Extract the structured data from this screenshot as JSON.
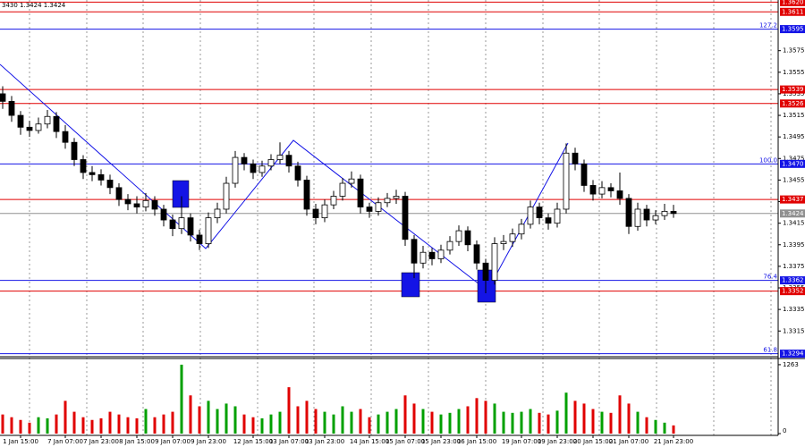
{
  "chart_data": {
    "type": "candlestick",
    "ohlc_text": "3430 1.3424 1.3424",
    "categories": [
      null,
      null,
      "1 Jan 15:00",
      null,
      null,
      null,
      null,
      "7 Jan 07:00",
      null,
      null,
      null,
      "7 Jan 23:00",
      null,
      null,
      null,
      "8 Jan 15:00",
      null,
      null,
      null,
      "9 Jan 07:00",
      null,
      null,
      null,
      "9 Jan 23:00",
      null,
      null,
      null,
      null,
      "12 Jan 15:00",
      null,
      null,
      null,
      "13 Jan 07:00",
      null,
      null,
      null,
      "13 Jan 23:00",
      null,
      null,
      null,
      null,
      "14 Jan 15:00",
      null,
      null,
      null,
      "15 Jan 07:00",
      null,
      null,
      null,
      "15 Jan 23:00",
      null,
      null,
      null,
      "16 Jan 15:00",
      null,
      null,
      null,
      null,
      "19 Jan 07:00",
      null,
      null,
      null,
      "19 Jan 23:00",
      null,
      null,
      null,
      "20 Jan 15:00",
      null,
      null,
      null,
      "21 Jan 07:00",
      null,
      null,
      null,
      null,
      "21 Jan 23:00"
    ],
    "candles": [
      [
        1.3535,
        1.3542,
        1.3521,
        1.3528
      ],
      [
        1.3528,
        1.3533,
        1.3509,
        1.3515
      ],
      [
        1.3515,
        1.3519,
        1.3497,
        1.3504
      ],
      [
        1.3504,
        1.351,
        1.3495,
        1.3501
      ],
      [
        1.3501,
        1.3513,
        1.3498,
        1.3507
      ],
      [
        1.3507,
        1.352,
        1.3503,
        1.3514
      ],
      [
        1.3514,
        1.3518,
        1.3494,
        1.35
      ],
      [
        1.35,
        1.3506,
        1.3484,
        1.349
      ],
      [
        1.349,
        1.3494,
        1.3468,
        1.3474
      ],
      [
        1.3474,
        1.3478,
        1.3456,
        1.3462
      ],
      [
        1.3462,
        1.3468,
        1.3454,
        1.346
      ],
      [
        1.346,
        1.3465,
        1.345,
        1.3455
      ],
      [
        1.3455,
        1.346,
        1.3442,
        1.3448
      ],
      [
        1.3448,
        1.3452,
        1.3431,
        1.3437
      ],
      [
        1.3437,
        1.3442,
        1.3427,
        1.3433
      ],
      [
        1.3433,
        1.344,
        1.3424,
        1.343
      ],
      [
        1.343,
        1.3443,
        1.3426,
        1.3436
      ],
      [
        1.3436,
        1.344,
        1.3422,
        1.3428
      ],
      [
        1.3428,
        1.3432,
        1.3412,
        1.3418
      ],
      [
        1.3418,
        1.3423,
        1.3403,
        1.341
      ],
      [
        1.341,
        1.344,
        1.3405,
        1.342
      ],
      [
        1.342,
        1.3424,
        1.3398,
        1.3404
      ],
      [
        1.3404,
        1.3409,
        1.339,
        1.3396
      ],
      [
        1.3396,
        1.3425,
        1.3392,
        1.342
      ],
      [
        1.342,
        1.3434,
        1.3415,
        1.3428
      ],
      [
        1.3428,
        1.3458,
        1.3424,
        1.3452
      ],
      [
        1.3452,
        1.3482,
        1.3448,
        1.3476
      ],
      [
        1.3476,
        1.348,
        1.3464,
        1.347
      ],
      [
        1.347,
        1.3474,
        1.3456,
        1.3462
      ],
      [
        1.3462,
        1.3473,
        1.3458,
        1.3468
      ],
      [
        1.3468,
        1.3479,
        1.3464,
        1.3474
      ],
      [
        1.3474,
        1.349,
        1.347,
        1.3478
      ],
      [
        1.3478,
        1.3482,
        1.3462,
        1.3468
      ],
      [
        1.3468,
        1.3472,
        1.3449,
        1.3455
      ],
      [
        1.3455,
        1.3459,
        1.3422,
        1.3428
      ],
      [
        1.3428,
        1.3433,
        1.3414,
        1.342
      ],
      [
        1.342,
        1.3437,
        1.3416,
        1.3432
      ],
      [
        1.3432,
        1.3445,
        1.3428,
        1.344
      ],
      [
        1.344,
        1.3457,
        1.3436,
        1.3452
      ],
      [
        1.3452,
        1.3463,
        1.3448,
        1.3456
      ],
      [
        1.3456,
        1.346,
        1.3424,
        1.343
      ],
      [
        1.343,
        1.3434,
        1.342,
        1.3426
      ],
      [
        1.3426,
        1.3439,
        1.3422,
        1.3434
      ],
      [
        1.3434,
        1.3443,
        1.343,
        1.3438
      ],
      [
        1.3438,
        1.3446,
        1.3433,
        1.344
      ],
      [
        1.344,
        1.3444,
        1.3394,
        1.34
      ],
      [
        1.34,
        1.3404,
        1.3364,
        1.3378
      ],
      [
        1.3378,
        1.3394,
        1.3373,
        1.3388
      ],
      [
        1.3388,
        1.3392,
        1.3376,
        1.3382
      ],
      [
        1.3382,
        1.3395,
        1.3378,
        1.339
      ],
      [
        1.339,
        1.3403,
        1.3386,
        1.3398
      ],
      [
        1.3398,
        1.3413,
        1.3394,
        1.3408
      ],
      [
        1.3408,
        1.3412,
        1.3389,
        1.3395
      ],
      [
        1.3395,
        1.3399,
        1.3372,
        1.3378
      ],
      [
        1.3378,
        1.3382,
        1.335,
        1.3362
      ],
      [
        1.3362,
        1.3402,
        1.3358,
        1.3396
      ],
      [
        1.3396,
        1.3404,
        1.339,
        1.3398
      ],
      [
        1.3398,
        1.341,
        1.3393,
        1.3405
      ],
      [
        1.3405,
        1.3419,
        1.34,
        1.3414
      ],
      [
        1.3414,
        1.3436,
        1.341,
        1.343
      ],
      [
        1.343,
        1.3434,
        1.3414,
        1.342
      ],
      [
        1.342,
        1.3424,
        1.3409,
        1.3415
      ],
      [
        1.3415,
        1.3434,
        1.3411,
        1.3428
      ],
      [
        1.3428,
        1.3489,
        1.3424,
        1.348
      ],
      [
        1.348,
        1.3485,
        1.3464,
        1.347
      ],
      [
        1.347,
        1.3474,
        1.3444,
        1.345
      ],
      [
        1.345,
        1.3455,
        1.3436,
        1.3442
      ],
      [
        1.3442,
        1.3454,
        1.3438,
        1.3448
      ],
      [
        1.3448,
        1.3452,
        1.3439,
        1.3445
      ],
      [
        1.3445,
        1.3462,
        1.3432,
        1.3438
      ],
      [
        1.3438,
        1.3442,
        1.3405,
        1.3412
      ],
      [
        1.3412,
        1.3434,
        1.3408,
        1.3428
      ],
      [
        1.3428,
        1.3432,
        1.3412,
        1.3418
      ],
      [
        1.3418,
        1.3427,
        1.3414,
        1.3422
      ],
      [
        1.3422,
        1.3433,
        1.3418,
        1.3426
      ],
      [
        1.3426,
        1.3432,
        1.342,
        1.3424
      ]
    ],
    "volumes": [
      350,
      300,
      250,
      200,
      300,
      280,
      350,
      600,
      400,
      300,
      250,
      280,
      400,
      350,
      300,
      280,
      450,
      300,
      350,
      400,
      1263,
      700,
      500,
      600,
      450,
      550,
      500,
      350,
      300,
      280,
      350,
      400,
      850,
      500,
      600,
      450,
      400,
      350,
      500,
      400,
      450,
      300,
      350,
      400,
      450,
      700,
      550,
      450,
      400,
      350,
      380,
      450,
      500,
      650,
      600,
      550,
      400,
      380,
      400,
      450,
      380,
      350,
      420,
      750,
      600,
      550,
      450,
      400,
      380,
      700,
      550,
      400,
      300,
      250,
      200,
      150
    ],
    "up_color": "#00a000",
    "down_color": "#e00000",
    "ylim": [
      1.3292,
      1.3622
    ],
    "yticks": [
      1.3575,
      1.3555,
      1.3535,
      1.3515,
      1.3495,
      1.3475,
      1.3455,
      1.3435,
      1.3415,
      1.3395,
      1.3375,
      1.3355,
      1.3335,
      1.3315
    ],
    "vlim": [
      0,
      1360
    ],
    "vticks": [
      1263,
      0
    ],
    "grid": true,
    "levels": [
      {
        "value": 1.362,
        "label": "1.3620",
        "color": "#e00000"
      },
      {
        "value": 1.3611,
        "label": "1.3611",
        "color": "#e00000"
      },
      {
        "value": 1.3595,
        "label": "1.3595",
        "color": "#1414e6",
        "tag": "127.2"
      },
      {
        "value": 1.3539,
        "label": "1.3539",
        "color": "#e00000"
      },
      {
        "value": 1.3526,
        "label": "1.3526",
        "color": "#e00000"
      },
      {
        "value": 1.347,
        "label": "1.3470",
        "color": "#1414e6",
        "tag": "100.0"
      },
      {
        "value": 1.3437,
        "label": "1.3437",
        "color": "#e00000"
      },
      {
        "value": 1.3424,
        "label": "1.3424",
        "color": "#909090"
      },
      {
        "value": 1.3362,
        "label": "1.3362",
        "color": "#1414e6",
        "tag": "76.4"
      },
      {
        "value": 1.3352,
        "label": "1.3352",
        "color": "#e00000"
      },
      {
        "value": 1.3294,
        "label": "1.3294",
        "color": "#1414e6",
        "tag": "61.8"
      }
    ]
  }
}
